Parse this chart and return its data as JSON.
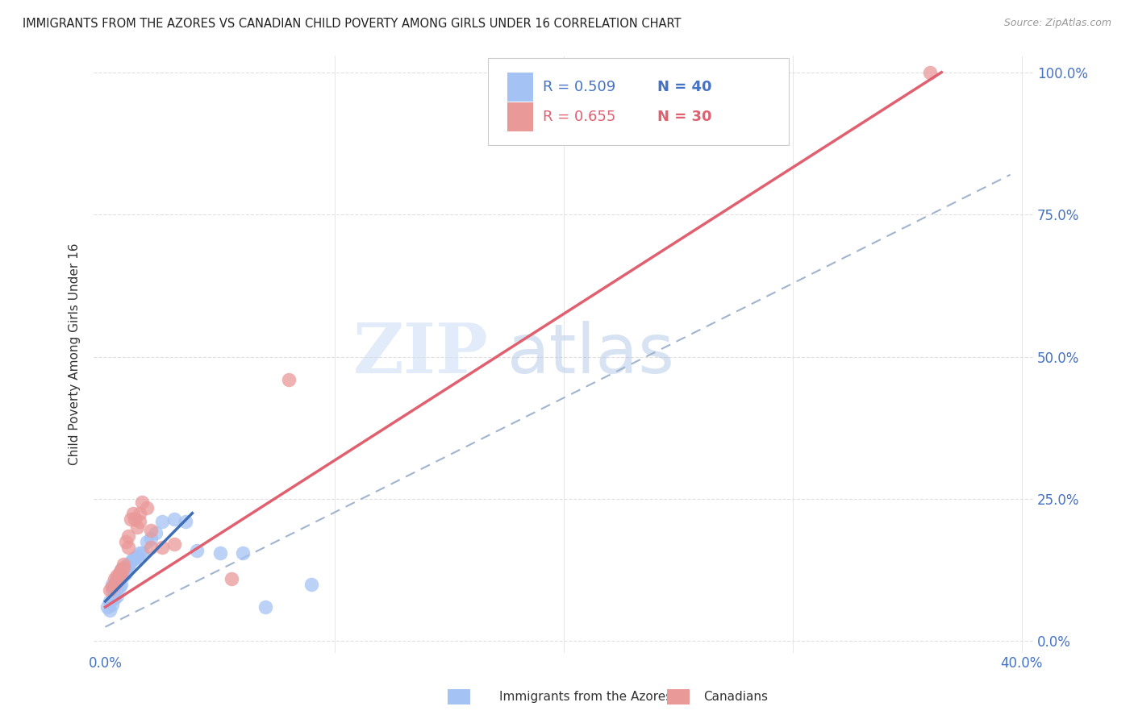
{
  "title": "IMMIGRANTS FROM THE AZORES VS CANADIAN CHILD POVERTY AMONG GIRLS UNDER 16 CORRELATION CHART",
  "source": "Source: ZipAtlas.com",
  "ylabel": "Child Poverty Among Girls Under 16",
  "x_tick_labels": [
    "0.0%",
    "",
    "",
    "",
    "40.0%"
  ],
  "x_tick_vals": [
    0.0,
    0.1,
    0.2,
    0.3,
    0.4
  ],
  "y_tick_labels_right": [
    "0.0%",
    "25.0%",
    "50.0%",
    "75.0%",
    "100.0%"
  ],
  "y_tick_vals": [
    0.0,
    0.25,
    0.5,
    0.75,
    1.0
  ],
  "xlim": [
    -0.005,
    0.405
  ],
  "ylim": [
    -0.02,
    1.03
  ],
  "watermark_zip": "ZIP",
  "watermark_atlas": "atlas",
  "blue_color": "#a4c2f4",
  "pink_color": "#ea9999",
  "blue_line_color": "#3d6eb5",
  "pink_line_color": "#e06070",
  "gray_dash_color": "#a0b4d0",
  "blue_scatter": [
    [
      0.001,
      0.06
    ],
    [
      0.002,
      0.055
    ],
    [
      0.002,
      0.07
    ],
    [
      0.003,
      0.065
    ],
    [
      0.003,
      0.09
    ],
    [
      0.003,
      0.1
    ],
    [
      0.004,
      0.075
    ],
    [
      0.004,
      0.085
    ],
    [
      0.004,
      0.1
    ],
    [
      0.005,
      0.08
    ],
    [
      0.005,
      0.095
    ],
    [
      0.005,
      0.11
    ],
    [
      0.006,
      0.095
    ],
    [
      0.006,
      0.105
    ],
    [
      0.006,
      0.115
    ],
    [
      0.007,
      0.1
    ],
    [
      0.007,
      0.115
    ],
    [
      0.007,
      0.125
    ],
    [
      0.008,
      0.115
    ],
    [
      0.008,
      0.125
    ],
    [
      0.009,
      0.12
    ],
    [
      0.01,
      0.13
    ],
    [
      0.01,
      0.135
    ],
    [
      0.011,
      0.14
    ],
    [
      0.012,
      0.145
    ],
    [
      0.013,
      0.145
    ],
    [
      0.014,
      0.15
    ],
    [
      0.015,
      0.155
    ],
    [
      0.016,
      0.155
    ],
    [
      0.018,
      0.175
    ],
    [
      0.02,
      0.18
    ],
    [
      0.022,
      0.19
    ],
    [
      0.025,
      0.21
    ],
    [
      0.03,
      0.215
    ],
    [
      0.035,
      0.21
    ],
    [
      0.04,
      0.16
    ],
    [
      0.05,
      0.155
    ],
    [
      0.06,
      0.155
    ],
    [
      0.07,
      0.06
    ],
    [
      0.09,
      0.1
    ]
  ],
  "pink_scatter": [
    [
      0.002,
      0.09
    ],
    [
      0.003,
      0.095
    ],
    [
      0.004,
      0.1
    ],
    [
      0.004,
      0.11
    ],
    [
      0.005,
      0.105
    ],
    [
      0.005,
      0.115
    ],
    [
      0.006,
      0.115
    ],
    [
      0.006,
      0.12
    ],
    [
      0.007,
      0.12
    ],
    [
      0.007,
      0.125
    ],
    [
      0.008,
      0.13
    ],
    [
      0.008,
      0.135
    ],
    [
      0.009,
      0.175
    ],
    [
      0.01,
      0.165
    ],
    [
      0.01,
      0.185
    ],
    [
      0.011,
      0.215
    ],
    [
      0.012,
      0.225
    ],
    [
      0.013,
      0.215
    ],
    [
      0.014,
      0.2
    ],
    [
      0.015,
      0.21
    ],
    [
      0.015,
      0.225
    ],
    [
      0.016,
      0.245
    ],
    [
      0.018,
      0.235
    ],
    [
      0.02,
      0.165
    ],
    [
      0.02,
      0.195
    ],
    [
      0.025,
      0.165
    ],
    [
      0.03,
      0.17
    ],
    [
      0.055,
      0.11
    ],
    [
      0.08,
      0.46
    ],
    [
      0.36,
      1.0
    ]
  ],
  "blue_trendline": [
    [
      0.0,
      0.07
    ],
    [
      0.038,
      0.225
    ]
  ],
  "pink_trendline": [
    [
      0.0,
      0.06
    ],
    [
      0.365,
      1.0
    ]
  ],
  "gray_dashed_line": [
    [
      0.0,
      0.025
    ],
    [
      0.395,
      0.82
    ]
  ]
}
